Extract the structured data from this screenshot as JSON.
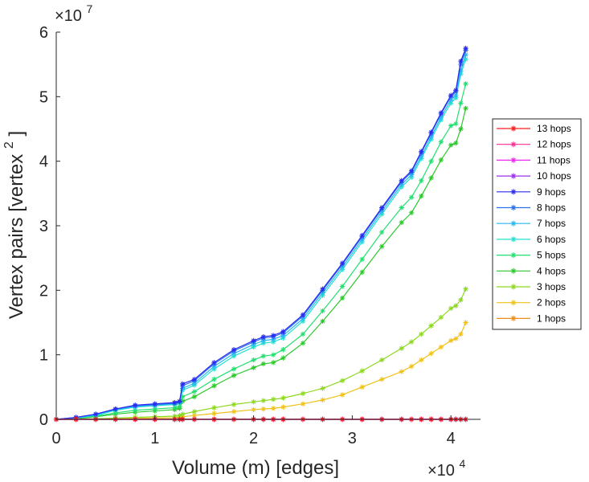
{
  "chart_data": {
    "type": "line",
    "title": "",
    "xlabel": "Volume (m) [edges]",
    "ylabel": "Vertex pairs [vertex",
    "ylabel_superscript": "2",
    "ylabel_suffix": "]",
    "x_multiplier_label": "×10",
    "x_multiplier_exp": "4",
    "y_multiplier_label": "×10",
    "y_multiplier_exp": "7",
    "xlim": [
      0,
      4.3
    ],
    "ylim": [
      0,
      6
    ],
    "x_ticks": [
      0,
      1,
      2,
      3,
      4
    ],
    "x_tick_labels": [
      "0",
      "1",
      "2",
      "3",
      "4"
    ],
    "y_ticks": [
      0,
      1,
      2,
      3,
      4,
      5,
      6
    ],
    "y_tick_labels": [
      "0",
      "1",
      "2",
      "3",
      "4",
      "5",
      "6"
    ],
    "grid": false,
    "legend_position": "right-outside",
    "x": [
      0,
      0.2,
      0.4,
      0.6,
      0.8,
      1.0,
      1.2,
      1.25,
      1.28,
      1.4,
      1.6,
      1.8,
      2.0,
      2.1,
      2.2,
      2.3,
      2.5,
      2.7,
      2.9,
      3.1,
      3.3,
      3.5,
      3.6,
      3.7,
      3.8,
      3.9,
      4.0,
      4.05,
      4.1,
      4.15
    ],
    "series": [
      {
        "name": "13 hops",
        "color": "#ff1a1a",
        "marker": "*",
        "values": [
          0,
          0,
          0,
          0,
          0,
          0,
          0,
          0,
          0,
          0,
          0,
          0,
          0,
          0,
          0,
          0,
          0,
          0,
          0,
          0,
          0,
          0,
          0,
          0,
          0,
          0,
          0,
          0,
          0,
          0
        ]
      },
      {
        "name": "12 hops",
        "color": "#ff2d95",
        "marker": "*",
        "values": [
          0,
          0,
          0,
          0,
          0,
          0,
          0,
          0,
          0,
          0,
          0,
          0,
          0,
          0,
          0,
          0,
          0,
          0,
          0,
          0,
          0,
          0,
          0,
          0,
          0,
          0,
          0,
          0,
          0,
          0
        ]
      },
      {
        "name": "11 hops",
        "color": "#ee2af0",
        "marker": "*",
        "values": [
          0,
          0,
          0,
          0,
          0,
          0,
          0,
          0,
          0,
          0,
          0,
          0,
          0,
          0,
          0,
          0,
          0,
          0,
          0,
          0,
          0,
          0,
          0,
          0,
          0,
          0,
          0,
          0,
          0,
          0
        ]
      },
      {
        "name": "10 hops",
        "color": "#9a30f0",
        "marker": "*",
        "values": [
          0,
          0,
          0,
          0,
          0,
          0,
          0,
          0,
          0,
          0,
          0,
          0,
          0,
          0,
          0,
          0,
          0,
          0,
          0,
          0,
          0,
          0,
          0,
          0,
          0,
          0,
          0,
          0,
          0,
          0
        ]
      },
      {
        "name": "9 hops",
        "color": "#2b2bf0",
        "marker": "*",
        "values": [
          0,
          0.03,
          0.08,
          0.16,
          0.22,
          0.24,
          0.26,
          0.28,
          0.55,
          0.62,
          0.88,
          1.08,
          1.22,
          1.28,
          1.3,
          1.36,
          1.62,
          2.02,
          2.42,
          2.85,
          3.28,
          3.7,
          3.85,
          4.15,
          4.45,
          4.75,
          5.02,
          5.1,
          5.55,
          5.75
        ]
      },
      {
        "name": "8 hops",
        "color": "#2b70f0",
        "marker": "*",
        "values": [
          0,
          0.03,
          0.08,
          0.16,
          0.21,
          0.23,
          0.25,
          0.27,
          0.52,
          0.6,
          0.86,
          1.06,
          1.2,
          1.26,
          1.28,
          1.34,
          1.6,
          2.0,
          2.4,
          2.83,
          3.26,
          3.68,
          3.83,
          4.13,
          4.43,
          4.73,
          5.0,
          5.08,
          5.5,
          5.72
        ]
      },
      {
        "name": "7 hops",
        "color": "#28b8f0",
        "marker": "*",
        "values": [
          0,
          0.02,
          0.07,
          0.15,
          0.2,
          0.22,
          0.24,
          0.26,
          0.48,
          0.56,
          0.82,
          1.02,
          1.16,
          1.22,
          1.24,
          1.3,
          1.56,
          1.96,
          2.36,
          2.79,
          3.22,
          3.64,
          3.79,
          4.08,
          4.38,
          4.68,
          4.95,
          5.02,
          5.4,
          5.65
        ]
      },
      {
        "name": "6 hops",
        "color": "#24dfd0",
        "marker": "*",
        "values": [
          0,
          0.02,
          0.06,
          0.14,
          0.19,
          0.21,
          0.23,
          0.25,
          0.45,
          0.53,
          0.78,
          0.98,
          1.12,
          1.18,
          1.2,
          1.26,
          1.52,
          1.92,
          2.32,
          2.75,
          3.18,
          3.6,
          3.75,
          4.04,
          4.34,
          4.64,
          4.9,
          4.98,
          5.35,
          5.58
        ]
      },
      {
        "name": "5 hops",
        "color": "#22e070",
        "marker": "*",
        "values": [
          0,
          0.02,
          0.05,
          0.1,
          0.14,
          0.16,
          0.18,
          0.2,
          0.35,
          0.43,
          0.62,
          0.78,
          0.92,
          0.98,
          1.0,
          1.08,
          1.32,
          1.68,
          2.06,
          2.48,
          2.9,
          3.28,
          3.44,
          3.7,
          4.0,
          4.3,
          4.55,
          4.58,
          4.9,
          5.2
        ]
      },
      {
        "name": "4 hops",
        "color": "#2bc82b",
        "marker": "*",
        "values": [
          0,
          0.01,
          0.04,
          0.08,
          0.11,
          0.13,
          0.15,
          0.17,
          0.28,
          0.35,
          0.52,
          0.68,
          0.8,
          0.86,
          0.88,
          0.95,
          1.18,
          1.52,
          1.88,
          2.28,
          2.68,
          3.05,
          3.2,
          3.46,
          3.74,
          4.02,
          4.25,
          4.28,
          4.5,
          4.82
        ]
      },
      {
        "name": "3 hops",
        "color": "#8cd91f",
        "marker": "*",
        "values": [
          0,
          0.005,
          0.01,
          0.02,
          0.03,
          0.04,
          0.05,
          0.06,
          0.08,
          0.12,
          0.18,
          0.23,
          0.27,
          0.29,
          0.31,
          0.33,
          0.4,
          0.48,
          0.6,
          0.75,
          0.92,
          1.1,
          1.2,
          1.32,
          1.45,
          1.58,
          1.72,
          1.76,
          1.85,
          2.02
        ]
      },
      {
        "name": "2 hops",
        "color": "#f0c219",
        "marker": "*",
        "values": [
          0,
          0.002,
          0.005,
          0.01,
          0.015,
          0.02,
          0.025,
          0.03,
          0.04,
          0.06,
          0.09,
          0.12,
          0.15,
          0.16,
          0.17,
          0.19,
          0.24,
          0.3,
          0.38,
          0.5,
          0.62,
          0.74,
          0.82,
          0.92,
          1.02,
          1.12,
          1.22,
          1.25,
          1.32,
          1.5
        ]
      },
      {
        "name": "1 hops",
        "color": "#f08c19",
        "marker": "*",
        "values": [
          0,
          0,
          0,
          0,
          0,
          0,
          0,
          0,
          0,
          0,
          0,
          0,
          0,
          0,
          0,
          0,
          0,
          0,
          0,
          0,
          0,
          0,
          0,
          0,
          0,
          0,
          0,
          0,
          0,
          0
        ]
      }
    ]
  }
}
